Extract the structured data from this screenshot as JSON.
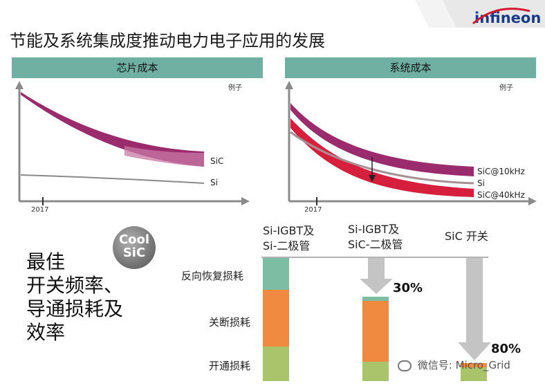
{
  "header": {
    "title": "节能及系统集成度推动电力电子应用的发展",
    "brand": "infineon"
  },
  "left_panel": {
    "header": "芯片成本",
    "example": "例子",
    "year": "2017",
    "labels": {
      "sic": "SiC",
      "si": "Si"
    }
  },
  "right_panel": {
    "header": "系统成本",
    "example": "例子",
    "year": "2017",
    "labels": {
      "sic10": "SiC@10kHz",
      "si": "Si",
      "sic40": "SiC@40kHz"
    }
  },
  "badge": {
    "line1": "Cool",
    "line2": "SiC",
    "tm": "™"
  },
  "best": {
    "line1": "最佳",
    "line2": "开关频率、",
    "line3": "导通损耗及",
    "line4": "效率"
  },
  "bottom_chart": {
    "row_labels": {
      "reverse": "反向恢复损耗",
      "off": "关断损耗",
      "on": "开通损耗"
    },
    "columns": [
      {
        "line1": "Si-IGBT及",
        "line2": "Si-二极管"
      },
      {
        "line1": "Si-IGBT及",
        "line2": "SiC-二极管"
      },
      {
        "line1": "SiC 开关",
        "line2": ""
      }
    ],
    "reductions": {
      "col2": "30%",
      "col3": "80%"
    },
    "colors": {
      "reverse": "#7dbda4",
      "off": "#ef8a40",
      "on": "#a9c46a",
      "arrow": "#c4c4c4"
    }
  },
  "watermark": {
    "text": "微信号: Micro_Grid"
  }
}
